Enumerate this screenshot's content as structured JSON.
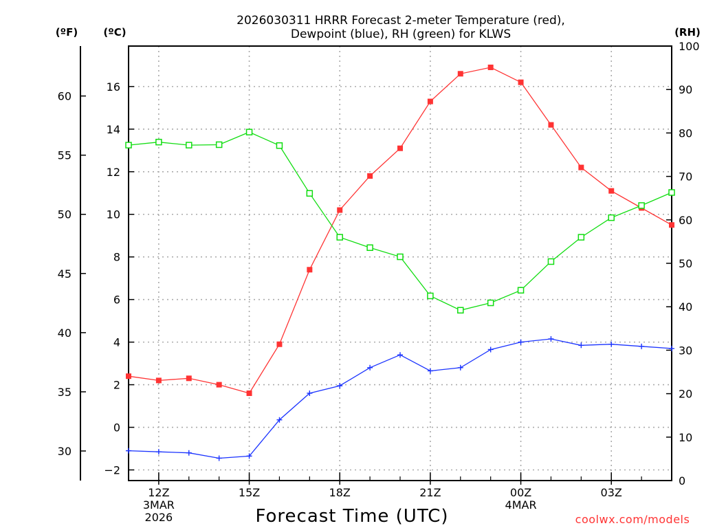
{
  "colors": {
    "temperature": "#ff3333",
    "dewpoint": "#1a33ff",
    "rh": "#11dd11",
    "grid": "#aaaaaa",
    "credit": "#ff3333"
  },
  "chart_data": {
    "type": "line",
    "title": "2026030311 HRRR Forecast 2-meter Temperature (red), Dewpoint (blue), RH (green) for KLWS",
    "title_lines": [
      "2026030311 HRRR Forecast 2-meter Temperature (red),",
      "Dewpoint (blue), RH (green) for KLWS"
    ],
    "xlabel": "Forecast Time (UTC)",
    "credit": "coolwx.com/models",
    "unit_labels": {
      "fahrenheit": "(ºF)",
      "celsius": "(ºC)",
      "rh": "(RH)"
    },
    "x_hours": [
      11,
      12,
      13,
      14,
      15,
      16,
      17,
      18,
      19,
      20,
      21,
      22,
      23,
      24,
      25,
      26,
      27,
      28,
      29
    ],
    "xlim": [
      11,
      29
    ],
    "x_ticks": [
      {
        "hour": 12,
        "lines": [
          "12Z",
          "3MAR",
          "2026"
        ]
      },
      {
        "hour": 15,
        "lines": [
          "15Z"
        ]
      },
      {
        "hour": 18,
        "lines": [
          "18Z"
        ]
      },
      {
        "hour": 21,
        "lines": [
          "21Z"
        ]
      },
      {
        "hour": 24,
        "lines": [
          "00Z",
          "4MAR"
        ]
      },
      {
        "hour": 27,
        "lines": [
          "03Z"
        ]
      }
    ],
    "celsius_axis": {
      "ylim": [
        -2.5,
        17.9
      ],
      "ticks": [
        -2,
        0,
        2,
        4,
        6,
        8,
        10,
        12,
        14,
        16
      ],
      "tick_labels": [
        "−2",
        "0",
        "2",
        "4",
        "6",
        "8",
        "10",
        "12",
        "14",
        "16"
      ]
    },
    "fahrenheit_axis": {
      "ticks": [
        30,
        35,
        40,
        45,
        50,
        55,
        60
      ],
      "tick_labels": [
        "30",
        "35",
        "40",
        "45",
        "50",
        "55",
        "60"
      ]
    },
    "rh_axis": {
      "ylim": [
        0,
        100
      ],
      "ticks": [
        0,
        10,
        20,
        30,
        40,
        50,
        60,
        70,
        80,
        90,
        100
      ],
      "tick_labels": [
        "0",
        "10",
        "20",
        "30",
        "40",
        "50",
        "60",
        "70",
        "80",
        "90",
        "100"
      ]
    },
    "series": [
      {
        "name": "Temperature",
        "axis": "celsius",
        "marker": "filled-square",
        "values": [
          2.4,
          2.2,
          2.3,
          2.0,
          1.6,
          3.9,
          7.4,
          10.2,
          11.8,
          13.1,
          15.3,
          16.6,
          16.9,
          16.2,
          14.2,
          12.2,
          11.1,
          10.3,
          9.5
        ]
      },
      {
        "name": "Dewpoint",
        "axis": "celsius",
        "marker": "plus",
        "values": [
          -1.1,
          -1.15,
          -1.2,
          -1.45,
          -1.35,
          0.35,
          1.6,
          1.95,
          2.8,
          3.4,
          2.65,
          2.8,
          3.65,
          4.0,
          4.15,
          3.85,
          3.9,
          3.8,
          3.7
        ]
      },
      {
        "name": "RH",
        "axis": "rh",
        "marker": "open-square",
        "values": [
          77.2,
          77.9,
          77.2,
          77.3,
          80.2,
          77.1,
          66.1,
          56.0,
          53.6,
          51.5,
          42.5,
          39.2,
          40.9,
          43.8,
          50.4,
          56.0,
          60.5,
          63.3,
          66.3
        ]
      }
    ]
  }
}
